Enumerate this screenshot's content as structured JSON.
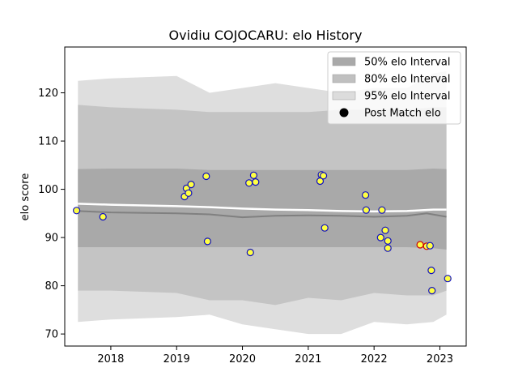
{
  "chart_data": {
    "type": "scatter",
    "title": "Ovidiu COJOCARU: elo History",
    "xlabel": "",
    "ylabel": "elo score",
    "xlim": [
      2017.3,
      2023.4
    ],
    "ylim": [
      67.5,
      129.5
    ],
    "xticks": [
      2018,
      2019,
      2020,
      2021,
      2022,
      2023
    ],
    "xtick_labels": [
      "2018",
      "2019",
      "2020",
      "2021",
      "2022",
      "2023"
    ],
    "yticks": [
      70,
      80,
      90,
      100,
      110,
      120
    ],
    "ytick_labels": [
      "70",
      "80",
      "90",
      "100",
      "110",
      "120"
    ],
    "grid": false,
    "legend_position": "top-right",
    "legend": [
      {
        "label": "50% elo Interval",
        "kind": "band",
        "color": "#a9a9a9"
      },
      {
        "label": "80% elo Interval",
        "kind": "band",
        "color": "#c0c0c0"
      },
      {
        "label": "95% elo Interval",
        "kind": "band",
        "color": "#dcdcdc"
      },
      {
        "label": "Post Match elo",
        "kind": "marker",
        "color": "#000000"
      }
    ],
    "bands": {
      "x": [
        2017.5,
        2018.0,
        2019.0,
        2019.5,
        2020.0,
        2020.5,
        2021.0,
        2021.5,
        2022.0,
        2022.5,
        2022.9,
        2023.1
      ],
      "i95_upper": [
        122.5,
        123.0,
        123.5,
        120.0,
        121.0,
        122.0,
        121.0,
        120.0,
        121.0,
        121.0,
        124.0,
        124.5
      ],
      "i80_upper": [
        117.5,
        117.0,
        116.5,
        116.0,
        116.0,
        116.0,
        116.0,
        116.5,
        116.5,
        116.5,
        117.0,
        117.0
      ],
      "i50_upper": [
        104.2,
        104.3,
        104.3,
        104.0,
        104.0,
        104.0,
        104.0,
        104.0,
        104.0,
        104.0,
        104.3,
        104.2
      ],
      "i50_lower": [
        88.0,
        88.0,
        88.0,
        88.0,
        88.0,
        88.0,
        88.0,
        88.0,
        88.0,
        88.0,
        87.8,
        87.5
      ],
      "i80_lower": [
        79.0,
        79.0,
        78.5,
        77.0,
        77.0,
        76.0,
        77.5,
        77.0,
        78.5,
        78.0,
        78.0,
        79.0
      ],
      "i95_lower": [
        72.5,
        73.0,
        73.5,
        74.0,
        72.0,
        71.0,
        70.0,
        70.0,
        72.5,
        72.0,
        72.5,
        74.0
      ]
    },
    "mean_line": {
      "x": [
        2017.5,
        2018.0,
        2019.0,
        2019.5,
        2020.0,
        2020.5,
        2021.0,
        2021.5,
        2022.0,
        2022.5,
        2022.8,
        2023.1
      ],
      "y": [
        95.5,
        95.2,
        95.0,
        94.8,
        94.2,
        94.5,
        94.6,
        94.5,
        94.3,
        94.5,
        95.0,
        94.3
      ]
    },
    "upper_line": {
      "x": [
        2017.5,
        2018.0,
        2019.0,
        2019.5,
        2020.0,
        2020.5,
        2021.0,
        2021.5,
        2022.0,
        2022.5,
        2022.9,
        2023.1
      ],
      "y": [
        97.0,
        96.8,
        96.5,
        96.3,
        96.0,
        95.8,
        95.7,
        95.5,
        95.4,
        95.5,
        95.8,
        95.8
      ]
    },
    "points": [
      {
        "x": 2017.48,
        "y": 95.6,
        "highlight": false
      },
      {
        "x": 2017.88,
        "y": 94.3,
        "highlight": false
      },
      {
        "x": 2019.12,
        "y": 98.5,
        "highlight": false
      },
      {
        "x": 2019.15,
        "y": 100.2,
        "highlight": false
      },
      {
        "x": 2019.18,
        "y": 99.2,
        "highlight": false
      },
      {
        "x": 2019.22,
        "y": 101.0,
        "highlight": false
      },
      {
        "x": 2019.45,
        "y": 102.7,
        "highlight": false
      },
      {
        "x": 2019.47,
        "y": 89.2,
        "highlight": false
      },
      {
        "x": 2020.1,
        "y": 101.3,
        "highlight": false
      },
      {
        "x": 2020.12,
        "y": 86.9,
        "highlight": false
      },
      {
        "x": 2020.17,
        "y": 102.9,
        "highlight": false
      },
      {
        "x": 2020.2,
        "y": 101.5,
        "highlight": false
      },
      {
        "x": 2021.18,
        "y": 101.7,
        "highlight": false
      },
      {
        "x": 2021.2,
        "y": 103.0,
        "highlight": false
      },
      {
        "x": 2021.23,
        "y": 102.8,
        "highlight": false
      },
      {
        "x": 2021.25,
        "y": 92.0,
        "highlight": false
      },
      {
        "x": 2021.87,
        "y": 98.8,
        "highlight": false
      },
      {
        "x": 2021.88,
        "y": 95.7,
        "highlight": false
      },
      {
        "x": 2022.12,
        "y": 95.7,
        "highlight": false
      },
      {
        "x": 2022.1,
        "y": 90.0,
        "highlight": false
      },
      {
        "x": 2022.17,
        "y": 91.5,
        "highlight": false
      },
      {
        "x": 2022.21,
        "y": 89.3,
        "highlight": false
      },
      {
        "x": 2022.21,
        "y": 87.8,
        "highlight": false
      },
      {
        "x": 2022.7,
        "y": 88.5,
        "highlight": true
      },
      {
        "x": 2022.8,
        "y": 88.2,
        "highlight": true
      },
      {
        "x": 2022.85,
        "y": 88.3,
        "highlight": false
      },
      {
        "x": 2022.87,
        "y": 83.2,
        "highlight": false
      },
      {
        "x": 2022.88,
        "y": 79.0,
        "highlight": false
      },
      {
        "x": 2023.12,
        "y": 81.5,
        "highlight": false
      }
    ],
    "colors": {
      "i50": "#a9a9a9",
      "i80": "#c4c4c4",
      "i95": "#dedede",
      "mean_line": "#808080",
      "upper_line": "#ffffff",
      "point_fill": "#ffff44",
      "point_edge": "#1010c0",
      "point_edge_highlight": "#cc0000"
    }
  }
}
